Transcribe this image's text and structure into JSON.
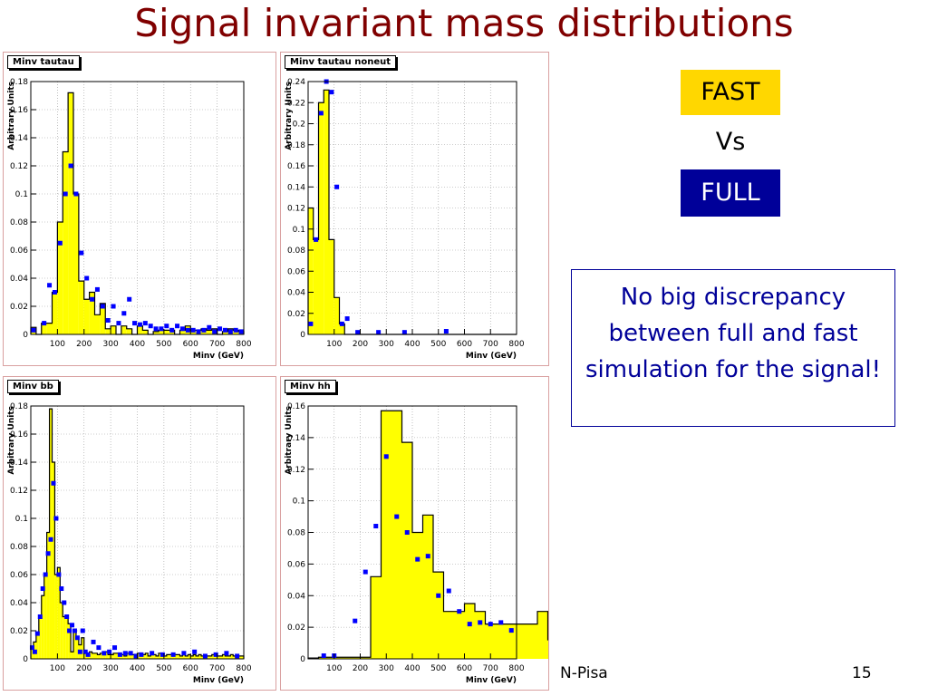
{
  "slide": {
    "title": "Signal invariant mass distributions",
    "fast_label": "FAST",
    "vs_label": "Vs",
    "full_label": "FULL",
    "note": "No big discrepancy between full and fast simulation for the signal!",
    "footer_left": "N-Pisa",
    "page_number": "15"
  },
  "colors": {
    "title": "#800000",
    "fast_bg": "#ffd700",
    "full_bg": "#000099",
    "note_text": "#000099",
    "hist_fill": "#ffff00",
    "marker": "#0000ff"
  },
  "chart_data": [
    {
      "type": "bar",
      "title": "Minv tautau",
      "xlabel": "Minv (GeV)",
      "ylabel": "Arbitrary Units",
      "xlim": [
        0,
        800
      ],
      "ylim": [
        0,
        0.18
      ],
      "grid": true,
      "xticks": [
        100,
        200,
        300,
        400,
        500,
        600,
        700,
        800
      ],
      "xtick_labels": [
        "100",
        "200",
        "300",
        "400",
        "500",
        "600",
        "700",
        "800"
      ],
      "yticks": [
        0,
        0.02,
        0.04,
        0.06,
        0.08,
        0.1,
        0.12,
        0.14,
        0.16,
        0.18
      ],
      "ytick_labels": [
        "0",
        "0.02",
        "0.04",
        "0.06",
        "0.08",
        "0.1",
        "0.12",
        "0.14",
        "0.16",
        "0.18"
      ],
      "bin_width": 20,
      "fast_hist": [
        0.005,
        0,
        0.008,
        0.008,
        0.03,
        0.08,
        0.13,
        0.172,
        0.1,
        0.038,
        0.025,
        0.03,
        0.014,
        0.022,
        0.004,
        0.006,
        0,
        0.006,
        0.004,
        0,
        0.006,
        0.003,
        0,
        0.002,
        0.003,
        0.003,
        0.003,
        0,
        0.003,
        0.006,
        0.003,
        0.003,
        0.004,
        0.003,
        0.004,
        0,
        0.002,
        0.004,
        0.003,
        0.002
      ],
      "full_points": {
        "x": [
          10,
          50,
          70,
          90,
          110,
          130,
          150,
          170,
          190,
          210,
          230,
          250,
          270,
          290,
          310,
          330,
          350,
          370,
          390,
          410,
          430,
          450,
          470,
          490,
          510,
          530,
          550,
          570,
          590,
          610,
          630,
          650,
          670,
          690,
          710,
          730,
          750,
          770,
          790
        ],
        "y": [
          0.003,
          0.008,
          0.035,
          0.03,
          0.065,
          0.1,
          0.12,
          0.1,
          0.058,
          0.04,
          0.025,
          0.032,
          0.02,
          0.01,
          0.02,
          0.008,
          0.015,
          0.025,
          0.008,
          0.007,
          0.008,
          0.006,
          0.004,
          0.004,
          0.006,
          0.003,
          0.006,
          0.004,
          0.003,
          0.003,
          0.002,
          0.003,
          0.005,
          0.002,
          0.004,
          0.003,
          0.002,
          0.003,
          0.002
        ]
      }
    },
    {
      "type": "bar",
      "title": "Minv tautau noneut",
      "xlabel": "Minv (GeV)",
      "ylabel": "Arbitrary Units",
      "xlim": [
        0,
        800
      ],
      "ylim": [
        0,
        0.24
      ],
      "grid": true,
      "xticks": [
        100,
        200,
        300,
        400,
        500,
        600,
        700,
        800
      ],
      "xtick_labels": [
        "100",
        "200",
        "300",
        "400",
        "500",
        "600",
        "700",
        "800"
      ],
      "yticks": [
        0,
        0.02,
        0.04,
        0.06,
        0.08,
        0.1,
        0.12,
        0.14,
        0.16,
        0.18,
        0.2,
        0.22,
        0.24
      ],
      "ytick_labels": [
        "0",
        "0.02",
        "0.04",
        "0.06",
        "0.08",
        "0.1",
        "0.12",
        "0.14",
        "0.16",
        "0.18",
        "0.2",
        "0.22",
        "0.24"
      ],
      "bin_width": 20,
      "fast_hist": [
        0.12,
        0.09,
        0.22,
        0.232,
        0.09,
        0.035,
        0.01,
        0,
        0,
        0,
        0,
        0,
        0,
        0,
        0,
        0,
        0,
        0,
        0,
        0,
        0,
        0,
        0,
        0,
        0,
        0,
        0,
        0,
        0,
        0,
        0,
        0,
        0,
        0,
        0,
        0,
        0,
        0,
        0,
        0
      ],
      "full_points": {
        "x": [
          10,
          30,
          50,
          70,
          90,
          110,
          130,
          150,
          190,
          270,
          370,
          530
        ],
        "y": [
          0.01,
          0.09,
          0.21,
          0.242,
          0.23,
          0.14,
          0.01,
          0.015,
          0.002,
          0.002,
          0.002,
          0.003
        ]
      }
    },
    {
      "type": "bar",
      "title": "Minv bb",
      "xlabel": "Minv (GeV)",
      "ylabel": "Arbitrary Units",
      "xlim": [
        0,
        800
      ],
      "ylim": [
        0,
        0.18
      ],
      "grid": true,
      "xticks": [
        100,
        200,
        300,
        400,
        500,
        600,
        700,
        800
      ],
      "xtick_labels": [
        "100",
        "200",
        "300",
        "400",
        "500",
        "600",
        "700",
        "800"
      ],
      "yticks": [
        0,
        0.02,
        0.04,
        0.06,
        0.08,
        0.1,
        0.12,
        0.14,
        0.16,
        0.18
      ],
      "ytick_labels": [
        "0",
        "0.02",
        "0.04",
        "0.06",
        "0.08",
        "0.1",
        "0.12",
        "0.14",
        "0.16",
        "0.18"
      ],
      "bin_width": 10,
      "fast_hist": [
        0.008,
        0.012,
        0.018,
        0.03,
        0.045,
        0.06,
        0.09,
        0.178,
        0.14,
        0.06,
        0.065,
        0.04,
        0.03,
        0.03,
        0.025,
        0.005,
        0.02,
        0.015,
        0.01,
        0.015,
        0.004,
        0.004,
        0.005,
        0.004,
        0.004,
        0.003,
        0.004,
        0.004,
        0.005,
        0.003,
        0.003,
        0.004,
        0.004,
        0.003,
        0.003,
        0.002,
        0.004,
        0.003,
        0.003,
        0.002,
        0.004,
        0.003,
        0.003,
        0.004,
        0.002,
        0.003,
        0.003,
        0.002,
        0.004,
        0.003,
        0.002,
        0.003,
        0.003,
        0.002,
        0.003,
        0.003,
        0.002,
        0.003,
        0.002,
        0.003,
        0.002,
        0.003,
        0.002,
        0.003,
        0.002,
        0.003,
        0.002,
        0.002,
        0.003,
        0.002,
        0.002,
        0.002,
        0.003,
        0.002,
        0.002,
        0.003,
        0.002,
        0.002,
        0.002,
        0.002
      ],
      "full_points": {
        "x": [
          5,
          15,
          25,
          35,
          45,
          55,
          65,
          75,
          85,
          95,
          105,
          115,
          125,
          135,
          145,
          155,
          165,
          175,
          185,
          195,
          205,
          215,
          235,
          255,
          275,
          295,
          315,
          335,
          355,
          375,
          395,
          415,
          455,
          495,
          535,
          575,
          615,
          655,
          695,
          735,
          775
        ],
        "y": [
          0.008,
          0.005,
          0.018,
          0.03,
          0.05,
          0.06,
          0.075,
          0.085,
          0.125,
          0.1,
          0.06,
          0.05,
          0.04,
          0.03,
          0.02,
          0.024,
          0.02,
          0.015,
          0.005,
          0.02,
          0.005,
          0.003,
          0.012,
          0.008,
          0.004,
          0.005,
          0.008,
          0.003,
          0.004,
          0.004,
          0.002,
          0.003,
          0.004,
          0.003,
          0.003,
          0.004,
          0.005,
          0.002,
          0.003,
          0.004,
          0.002
        ]
      }
    },
    {
      "type": "bar",
      "title": "Minv hh",
      "xlabel": "Minv (GeV)",
      "ylabel": "Arbitrary Units",
      "xlim": [
        0,
        800
      ],
      "ylim": [
        0,
        0.16
      ],
      "grid": true,
      "xticks": [
        100,
        200,
        300,
        400,
        500,
        600,
        700,
        800
      ],
      "xtick_labels": [
        "100",
        "200",
        "300",
        "400",
        "500",
        "600",
        "700",
        "800"
      ],
      "yticks": [
        0,
        0.02,
        0.04,
        0.06,
        0.08,
        0.1,
        0.12,
        0.14,
        0.16
      ],
      "ytick_labels": [
        "0",
        "0.02",
        "0.04",
        "0.06",
        "0.08",
        "0.1",
        "0.12",
        "0.14",
        "0.16"
      ],
      "bin_width": 40,
      "fast_hist": [
        0.0005,
        0.001,
        0.001,
        0.001,
        0.001,
        0.001,
        0.052,
        0.157,
        0.157,
        0.137,
        0.08,
        0.091,
        0.055,
        0.03,
        0.03,
        0.035,
        0.03,
        0.022,
        0.022,
        0.022,
        0.022,
        0.022,
        0.03,
        0.012
      ],
      "full_points": {
        "x": [
          60,
          100,
          180,
          220,
          260,
          300,
          340,
          380,
          420,
          460,
          500,
          540,
          580,
          620,
          660,
          700,
          740,
          780
        ],
        "y": [
          0.002,
          0.002,
          0.024,
          0.055,
          0.084,
          0.128,
          0.09,
          0.08,
          0.063,
          0.065,
          0.04,
          0.043,
          0.03,
          0.022,
          0.023,
          0.022,
          0.023,
          0.018
        ]
      }
    }
  ]
}
